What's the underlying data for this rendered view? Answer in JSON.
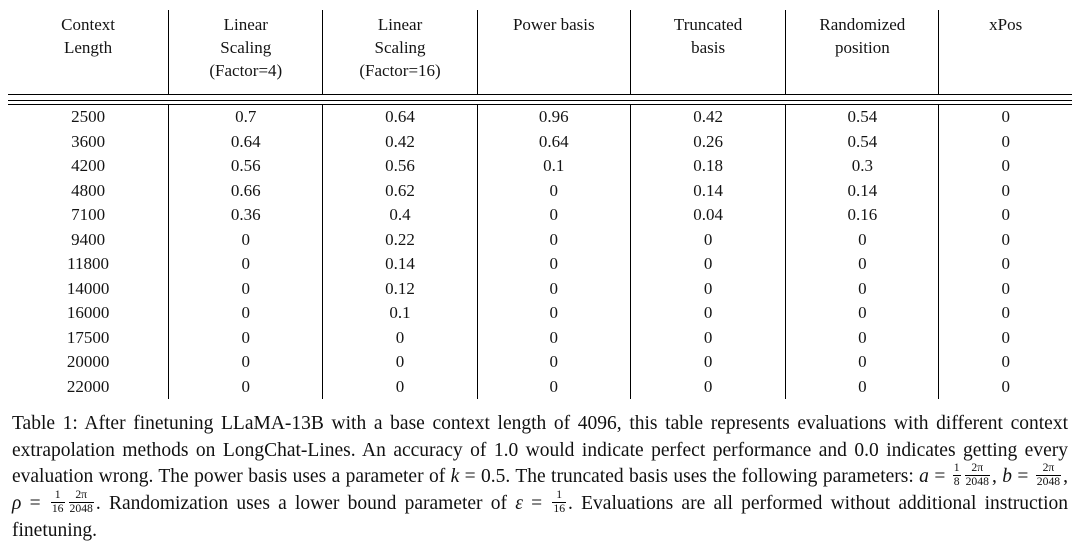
{
  "colors": {
    "background": "#ffffff",
    "text": "#141414",
    "rule": "#000000"
  },
  "table": {
    "headers": [
      "Context\nLength",
      "Linear\nScaling\n(Factor=4)",
      "Linear\nScaling\n(Factor=16)",
      "Power basis",
      "Truncated\nbasis",
      "Randomized\nposition",
      "xPos"
    ],
    "rows": [
      [
        "2500",
        "0.7",
        "0.64",
        "0.96",
        "0.42",
        "0.54",
        "0"
      ],
      [
        "3600",
        "0.64",
        "0.42",
        "0.64",
        "0.26",
        "0.54",
        "0"
      ],
      [
        "4200",
        "0.56",
        "0.56",
        "0.1",
        "0.18",
        "0.3",
        "0"
      ],
      [
        "4800",
        "0.66",
        "0.62",
        "0",
        "0.14",
        "0.14",
        "0"
      ],
      [
        "7100",
        "0.36",
        "0.4",
        "0",
        "0.04",
        "0.16",
        "0"
      ],
      [
        "9400",
        "0",
        "0.22",
        "0",
        "0",
        "0",
        "0"
      ],
      [
        "11800",
        "0",
        "0.14",
        "0",
        "0",
        "0",
        "0"
      ],
      [
        "14000",
        "0",
        "0.12",
        "0",
        "0",
        "0",
        "0"
      ],
      [
        "16000",
        "0",
        "0.1",
        "0",
        "0",
        "0",
        "0"
      ],
      [
        "17500",
        "0",
        "0",
        "0",
        "0",
        "0",
        "0"
      ],
      [
        "20000",
        "0",
        "0",
        "0",
        "0",
        "0",
        "0"
      ],
      [
        "22000",
        "0",
        "0",
        "0",
        "0",
        "0",
        "0"
      ]
    ]
  },
  "caption": {
    "tokens": [
      {
        "type": "text",
        "v": "Table 1: After finetuning LLaMA-13B with a base context length of 4096, this table represents evaluations with different context extrapolation methods on LongChat-Lines. An accuracy of 1.0 would indicate perfect performance and 0.0 indicates getting every evaluation wrong. The power basis uses a parameter of "
      },
      {
        "type": "var",
        "v": "k"
      },
      {
        "type": "text",
        "v": " = 0.5. The truncated basis uses the following parameters: "
      },
      {
        "type": "var",
        "v": "a"
      },
      {
        "type": "text",
        "v": " = "
      },
      {
        "type": "frac",
        "num": "1",
        "den": "8"
      },
      {
        "type": "frac",
        "num": "2π",
        "den": "2048"
      },
      {
        "type": "text",
        "v": ", "
      },
      {
        "type": "var",
        "v": "b"
      },
      {
        "type": "text",
        "v": " = "
      },
      {
        "type": "frac",
        "num": "2π",
        "den": "2048"
      },
      {
        "type": "text",
        "v": ", "
      },
      {
        "type": "var",
        "v": "ρ"
      },
      {
        "type": "text",
        "v": " = "
      },
      {
        "type": "frac",
        "num": "1",
        "den": "16"
      },
      {
        "type": "frac",
        "num": "2π",
        "den": "2048"
      },
      {
        "type": "text",
        "v": ". Randomization uses a lower bound parameter of "
      },
      {
        "type": "var",
        "v": "ε"
      },
      {
        "type": "text",
        "v": " = "
      },
      {
        "type": "frac",
        "num": "1",
        "den": "16"
      },
      {
        "type": "text",
        "v": ". Evaluations are all performed without additional instruction finetuning."
      }
    ]
  }
}
